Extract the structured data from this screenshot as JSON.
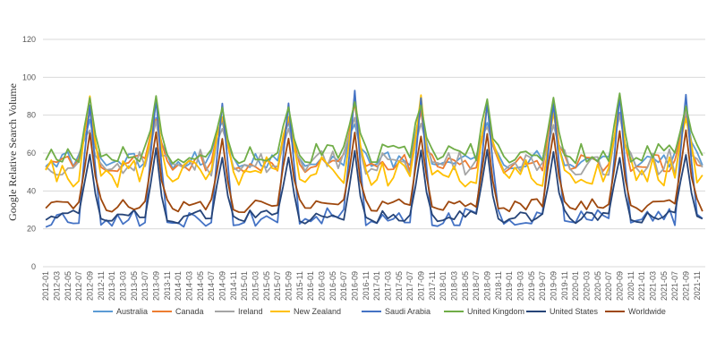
{
  "chart_data": {
    "type": "line",
    "title": "",
    "xlabel": "",
    "ylabel": "Google Relative Search Volume",
    "ylim": [
      0,
      120
    ],
    "yticks": [
      0,
      20,
      40,
      60,
      80,
      100,
      120
    ],
    "grid": true,
    "legend_position": "bottom",
    "start_month": "2012-01",
    "end_month": "2021-12",
    "tick_labels": [
      "2012-01",
      "2012-03",
      "2012-05",
      "2012-07",
      "2012-09",
      "2012-11",
      "2013-01",
      "2013-03",
      "2013-05",
      "2013-07",
      "2013-09",
      "2013-11",
      "2014-01",
      "2014-03",
      "2014-05",
      "2014-07",
      "2014-09",
      "2014-11",
      "2015-01",
      "2015-03",
      "2015-05",
      "2015-07",
      "2015-09",
      "2015-11",
      "2016-01",
      "2016-03",
      "2016-05",
      "2016-07",
      "2016-09",
      "2016-11",
      "2017-01",
      "2017-03",
      "2017-05",
      "2017-07",
      "2017-09",
      "2017-11",
      "2018-01",
      "2018-03",
      "2018-05",
      "2018-07",
      "2018-09",
      "2018-11",
      "2019-01",
      "2019-03",
      "2019-05",
      "2019-07",
      "2019-09",
      "2019-11",
      "2020-01",
      "2020-03",
      "2020-05",
      "2020-07",
      "2020-09",
      "2020-11",
      "2021-01",
      "2021-03",
      "2021-05",
      "2021-07",
      "2021-09",
      "2021-11"
    ],
    "series": [
      {
        "name": "Australia",
        "color": "#5B9BD5",
        "base": 57,
        "amp": 5,
        "peak": 80,
        "seed": 11
      },
      {
        "name": "Canada",
        "color": "#ED7D31",
        "base": 55,
        "amp": 5,
        "peak": 82,
        "seed": 23
      },
      {
        "name": "Ireland",
        "color": "#A5A5A5",
        "base": 55,
        "amp": 7,
        "peak": 78,
        "seed": 37
      },
      {
        "name": "New Zealand",
        "color": "#FFC000",
        "base": 50,
        "amp": 8,
        "peak": 85,
        "seed": 41
      },
      {
        "name": "Saudi Arabia",
        "color": "#4472C4",
        "base": 26,
        "amp": 5,
        "peak": 90,
        "seed": 53
      },
      {
        "name": "United Kingdom",
        "color": "#70AD47",
        "base": 60,
        "amp": 5,
        "peak": 88,
        "seed": 67
      },
      {
        "name": "United States",
        "color": "#264478",
        "base": 27,
        "amp": 3,
        "peak": 60,
        "seed": 71
      },
      {
        "name": "Worldwide",
        "color": "#9E480E",
        "base": 33,
        "amp": 3,
        "peak": 70,
        "seed": 83
      }
    ]
  }
}
